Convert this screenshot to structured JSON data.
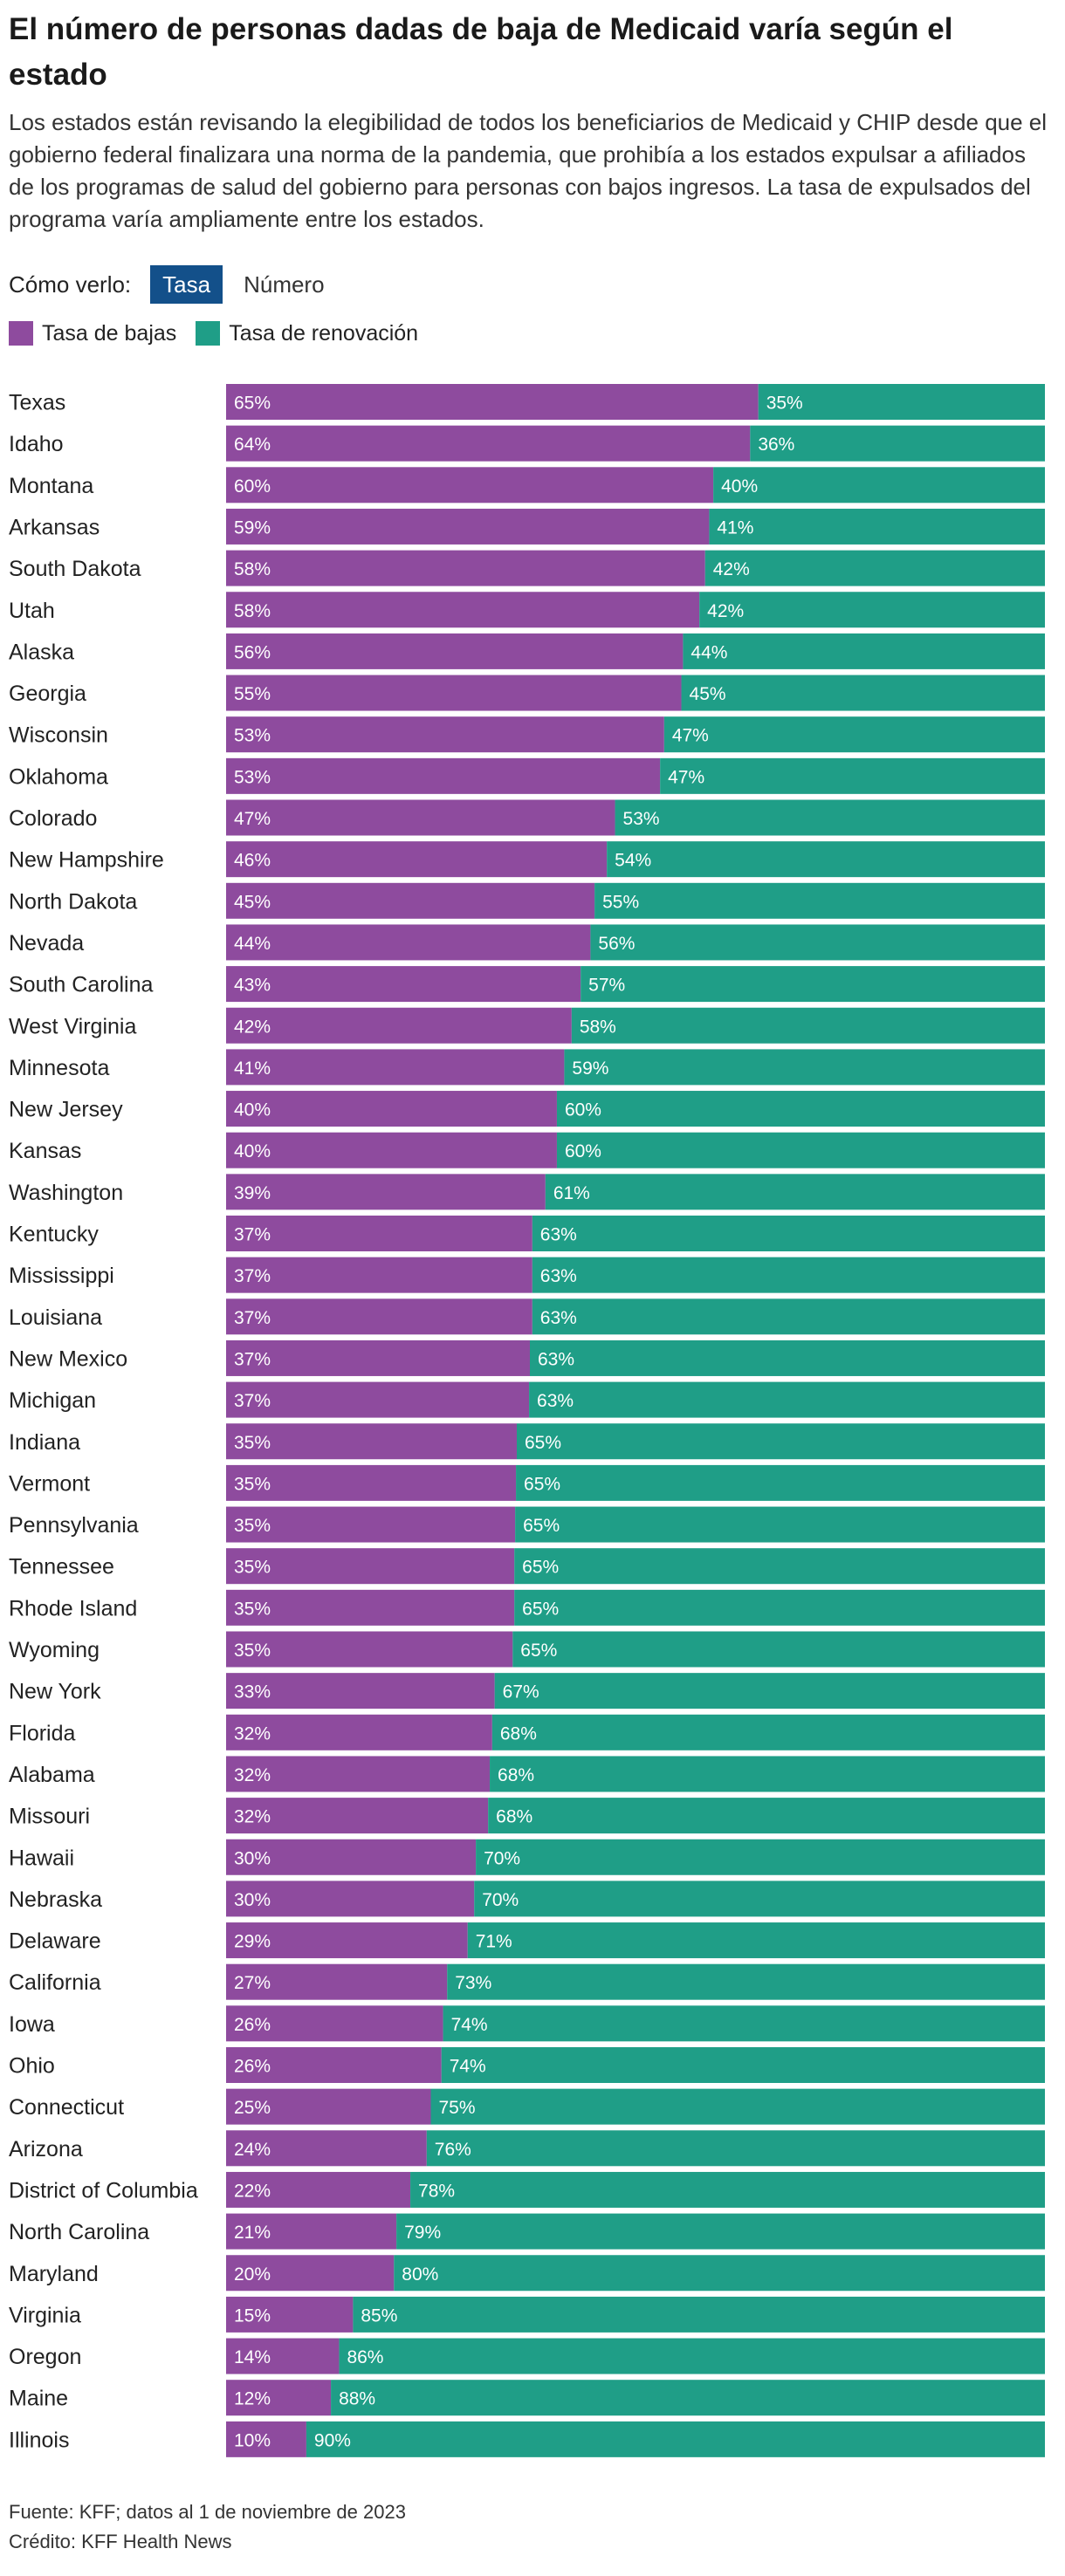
{
  "header": {
    "title": "El número de personas dadas de baja de Medicaid varía según el estado",
    "subtitle": "Los estados están revisando la elegibilidad de todos los beneficiarios de Medicaid y CHIP desde que el gobierno federal finalizara una norma de la pandemia, que prohibía a los estados expulsar a afiliados de los programas de salud del gobierno para personas con bajos ingresos. La tasa de expulsados del programa varía ampliamente entre los estados."
  },
  "controls": {
    "label": "Cómo verlo:",
    "options": [
      "Tasa",
      "Número"
    ],
    "selected": "Tasa"
  },
  "colors": {
    "bajas": "#8e4b9e",
    "renovacion": "#1f9e87",
    "toggle_active": "#13508a"
  },
  "chart_data": {
    "type": "bar",
    "orientation": "horizontal",
    "stacked": true,
    "normalized": true,
    "legend_position": "top-left",
    "grid": false,
    "xlim": [
      0,
      100
    ],
    "categories": [
      "Texas",
      "Idaho",
      "Montana",
      "Arkansas",
      "South Dakota",
      "Utah",
      "Alaska",
      "Georgia",
      "Wisconsin",
      "Oklahoma",
      "Colorado",
      "New Hampshire",
      "North Dakota",
      "Nevada",
      "South Carolina",
      "West Virginia",
      "Minnesota",
      "New Jersey",
      "Kansas",
      "Washington",
      "Kentucky",
      "Mississippi",
      "Louisiana",
      "New Mexico",
      "Michigan",
      "Indiana",
      "Vermont",
      "Pennsylvania",
      "Tennessee",
      "Rhode Island",
      "Wyoming",
      "New York",
      "Florida",
      "Alabama",
      "Missouri",
      "Hawaii",
      "Nebraska",
      "Delaware",
      "California",
      "Iowa",
      "Ohio",
      "Connecticut",
      "Arizona",
      "District of Columbia",
      "North Carolina",
      "Maryland",
      "Virginia",
      "Oregon",
      "Maine",
      "Illinois"
    ],
    "series": [
      {
        "name": "Tasa de bajas",
        "color": "#8e4b9e",
        "values": [
          65,
          64,
          60,
          59,
          58,
          58,
          56,
          55,
          53,
          53,
          47,
          46,
          45,
          44,
          43,
          42,
          41,
          40,
          40,
          39,
          37,
          37,
          37,
          37,
          37,
          35,
          35,
          35,
          35,
          35,
          35,
          33,
          32,
          32,
          32,
          30,
          30,
          29,
          27,
          26,
          26,
          25,
          24,
          22,
          21,
          20,
          15,
          14,
          12,
          10
        ],
        "bar_fraction": [
          0.65,
          0.64,
          0.595,
          0.59,
          0.585,
          0.578,
          0.558,
          0.556,
          0.535,
          0.53,
          0.475,
          0.465,
          0.45,
          0.445,
          0.433,
          0.422,
          0.413,
          0.404,
          0.404,
          0.39,
          0.374,
          0.374,
          0.374,
          0.371,
          0.37,
          0.355,
          0.354,
          0.353,
          0.352,
          0.352,
          0.35,
          0.328,
          0.325,
          0.322,
          0.32,
          0.305,
          0.303,
          0.295,
          0.27,
          0.265,
          0.263,
          0.25,
          0.245,
          0.225,
          0.208,
          0.205,
          0.155,
          0.138,
          0.128,
          0.098
        ]
      },
      {
        "name": "Tasa de renovación",
        "color": "#1f9e87",
        "values": [
          35,
          36,
          40,
          41,
          42,
          42,
          44,
          45,
          47,
          47,
          53,
          54,
          55,
          56,
          57,
          58,
          59,
          60,
          60,
          61,
          63,
          63,
          63,
          63,
          63,
          65,
          65,
          65,
          65,
          65,
          65,
          67,
          68,
          68,
          68,
          70,
          70,
          71,
          73,
          74,
          74,
          75,
          76,
          78,
          79,
          80,
          85,
          86,
          88,
          90
        ]
      }
    ]
  },
  "footer": {
    "source": "Fuente: KFF; datos al 1 de noviembre de 2023",
    "credit": "Crédito: KFF Health News"
  }
}
